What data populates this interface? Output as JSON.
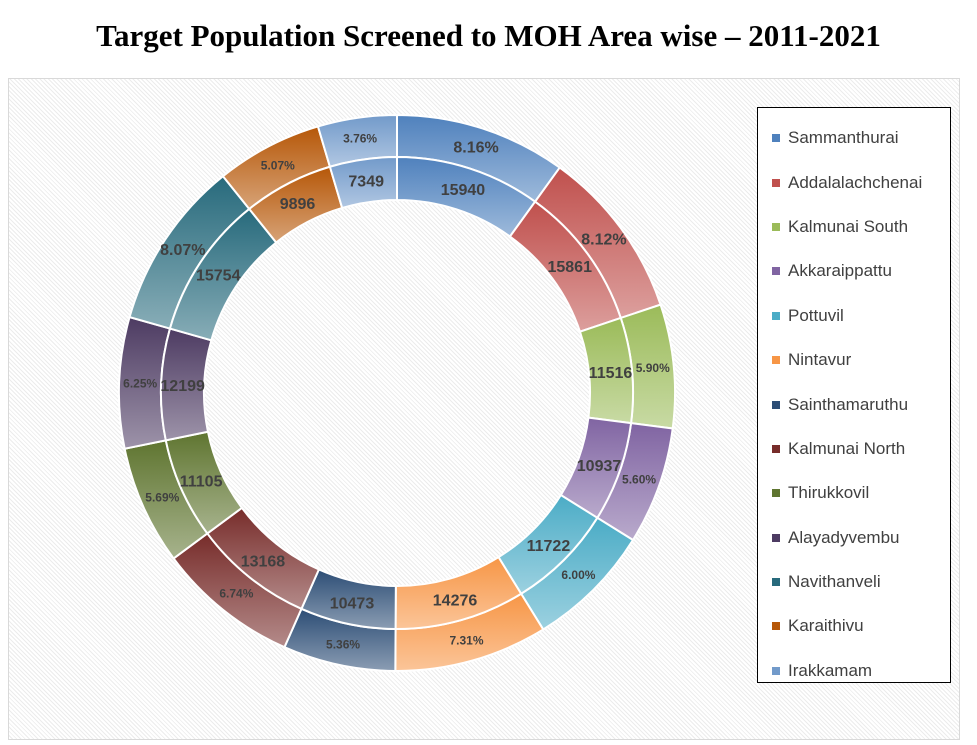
{
  "chart_data": {
    "type": "doughnut",
    "title": "Target Population Screened to MOH Area wise – 2011-2021",
    "categories": [
      "Sammanthurai",
      "Addalalachchenai",
      "Kalmunai South",
      "Akkaraippattu",
      "Pottuvil",
      "Nintavur",
      "Sainthamaruthu",
      "Kalmunai North",
      "Thirukkovil",
      "Alayadyvembu",
      "Navithanveli",
      "Karaithivu",
      "Irakkamam"
    ],
    "inner_ring_values": [
      15940,
      15861,
      11516,
      10937,
      11722,
      14276,
      10473,
      13168,
      11105,
      12199,
      15754,
      9896,
      7349
    ],
    "outer_ring_labels": [
      "8.16%",
      "8.12%",
      "5.90%",
      "5.60%",
      "6.00%",
      "7.31%",
      "5.36%",
      "6.74%",
      "5.69%",
      "6.25%",
      "8.07%",
      "5.07%",
      "3.76%"
    ],
    "colors": [
      "#4f81bd",
      "#c0504d",
      "#9bbb59",
      "#8064a2",
      "#4bacc6",
      "#f79646",
      "#2c4d75",
      "#772c2a",
      "#5f7530",
      "#4d3b62",
      "#276a7c",
      "#b65708",
      "#729aca"
    ],
    "legend_position": "right"
  }
}
